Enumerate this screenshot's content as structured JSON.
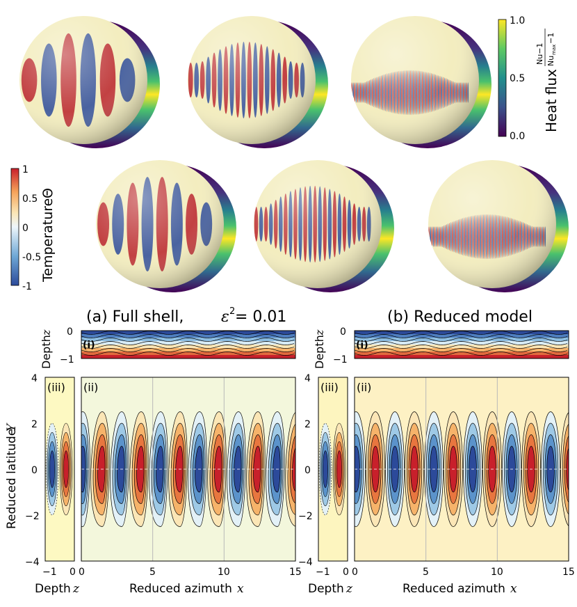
{
  "heat_colorbar": {
    "label": "Heat flux",
    "formula_num": "Nu−1",
    "formula_den": "Nu",
    "formula_den_sub": "max",
    "formula_den_tail": "−1",
    "ticks": [
      "1.0",
      "0.5",
      "0.0"
    ],
    "colors": [
      "#440154",
      "#3b528b",
      "#21908d",
      "#5dc963",
      "#fde725"
    ]
  },
  "temp_colorbar": {
    "label": "Temperature",
    "symbol": "Θ",
    "ticks": [
      "1",
      "0.5",
      "0",
      "-0.5",
      "-1"
    ],
    "colors": [
      "#2c4a9a",
      "#6fa8d6",
      "#eef6fb",
      "#fbe6b6",
      "#f5a35a",
      "#c8202b"
    ]
  },
  "spheres": {
    "top_row": [
      {
        "id": "t1",
        "n": 3
      },
      {
        "id": "t2",
        "n": 10
      },
      {
        "id": "t3",
        "n": 40
      }
    ],
    "bottom_row": [
      {
        "id": "b1",
        "n": 4
      },
      {
        "id": "b2",
        "n": 12
      },
      {
        "id": "b3",
        "n": 40
      }
    ]
  },
  "panels": {
    "a": {
      "title_prefix": "(a) Full shell, ",
      "title_math": "ε",
      "title_sup": "2",
      "title_suffix": " = 0.01"
    },
    "b": {
      "title": "(b) Reduced model"
    }
  },
  "axes": {
    "depth_label": "Depth",
    "depth_var": "z",
    "latitude_label": "Reduced latitude",
    "latitude_var": "Y",
    "azimuth_label": "Reduced azimuth",
    "azimuth_var": "x",
    "subpanel_ii": "(ii)",
    "subpanel_iii": "(iii)",
    "subpanel_i": "(i)",
    "depth_ticks": [
      "0",
      "−1"
    ],
    "y_ticks": [
      "4",
      "2",
      "0",
      "−2",
      "−4"
    ],
    "x_ticks": [
      "0",
      "5",
      "10",
      "15"
    ],
    "z_ticks": [
      "−1",
      "0"
    ]
  },
  "chart_data": [
    {
      "type": "heatmap",
      "title": "(a) Full shell, ε² = 0.01",
      "xlabel": "Reduced azimuth x",
      "ylabel": "Reduced latitude Y",
      "xlim": [
        0,
        15
      ],
      "ylim": [
        -4,
        4
      ],
      "roll_count": 11,
      "roll_half_width": [
        2.0,
        2.5
      ],
      "curved": true
    },
    {
      "type": "heatmap",
      "title": "(b) Reduced model",
      "xlabel": "Reduced azimuth x",
      "ylabel": "Reduced latitude Y",
      "xlim": [
        0,
        15
      ],
      "ylim": [
        -4,
        4
      ],
      "roll_count": 11,
      "roll_half_width": [
        2.0,
        2.5
      ],
      "curved": false
    }
  ]
}
